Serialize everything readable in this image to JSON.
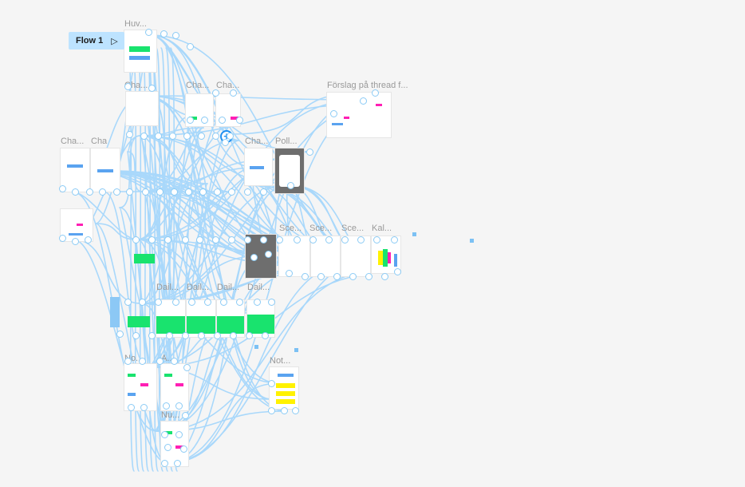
{
  "flow": {
    "label": "Flow 1",
    "play_icon": "play-icon"
  },
  "frame_labels": {
    "huv": "Huv...",
    "cha1": "Cha...",
    "cha2": "Cha...",
    "cha3": "Cha...",
    "cha4": "Cha...",
    "cha5": "Cha",
    "cha6": "Cha...",
    "poll": "Poll...",
    "forslag": "Förslag på thread f...",
    "sce1": "Sce...",
    "sce2": "Sce...",
    "sce3": "Sce...",
    "kal": "Kal...",
    "dail1": "Dail...",
    "dail2": "Dail...",
    "dail3": "Dail...",
    "dail4": "Dail...",
    "not1": "No...",
    "not2": "Not...",
    "a1": "A...",
    "nu": "Nu..."
  },
  "add_icon": "plus-circle-icon",
  "colors": {
    "canvas": "#f5f5f5",
    "connector": "#a9d8fb",
    "flow_badge": "#bde3ff",
    "accent_blue": "#1f8ff0",
    "green": "#19e36e",
    "magenta": "#ff1fb4",
    "yellow": "#fff200",
    "blue_block": "#5aa3f0"
  }
}
